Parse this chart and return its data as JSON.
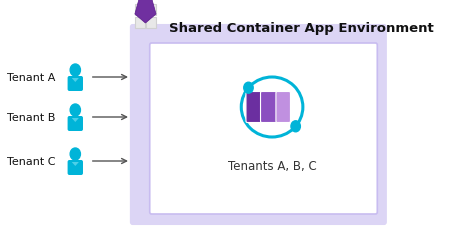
{
  "title": "Shared Container App Environment",
  "tenants": [
    "Tenant A",
    "Tenant B",
    "Tenant C"
  ],
  "bg_color": "#ffffff",
  "outer_box_color": "#dcd5f5",
  "inner_box_color": "#ffffff",
  "inner_box_border": "#c8bcf0",
  "person_color": "#00b4d8",
  "arrow_color": "#555555",
  "title_color": "#111111",
  "label_color": "#333333",
  "orbit_color": "#00b4d8",
  "shield_color": "#7030a0",
  "grid_color": "#d0d0d0",
  "grid_fill": "#e8e8e8",
  "container_label": "Tenants A, B, C"
}
